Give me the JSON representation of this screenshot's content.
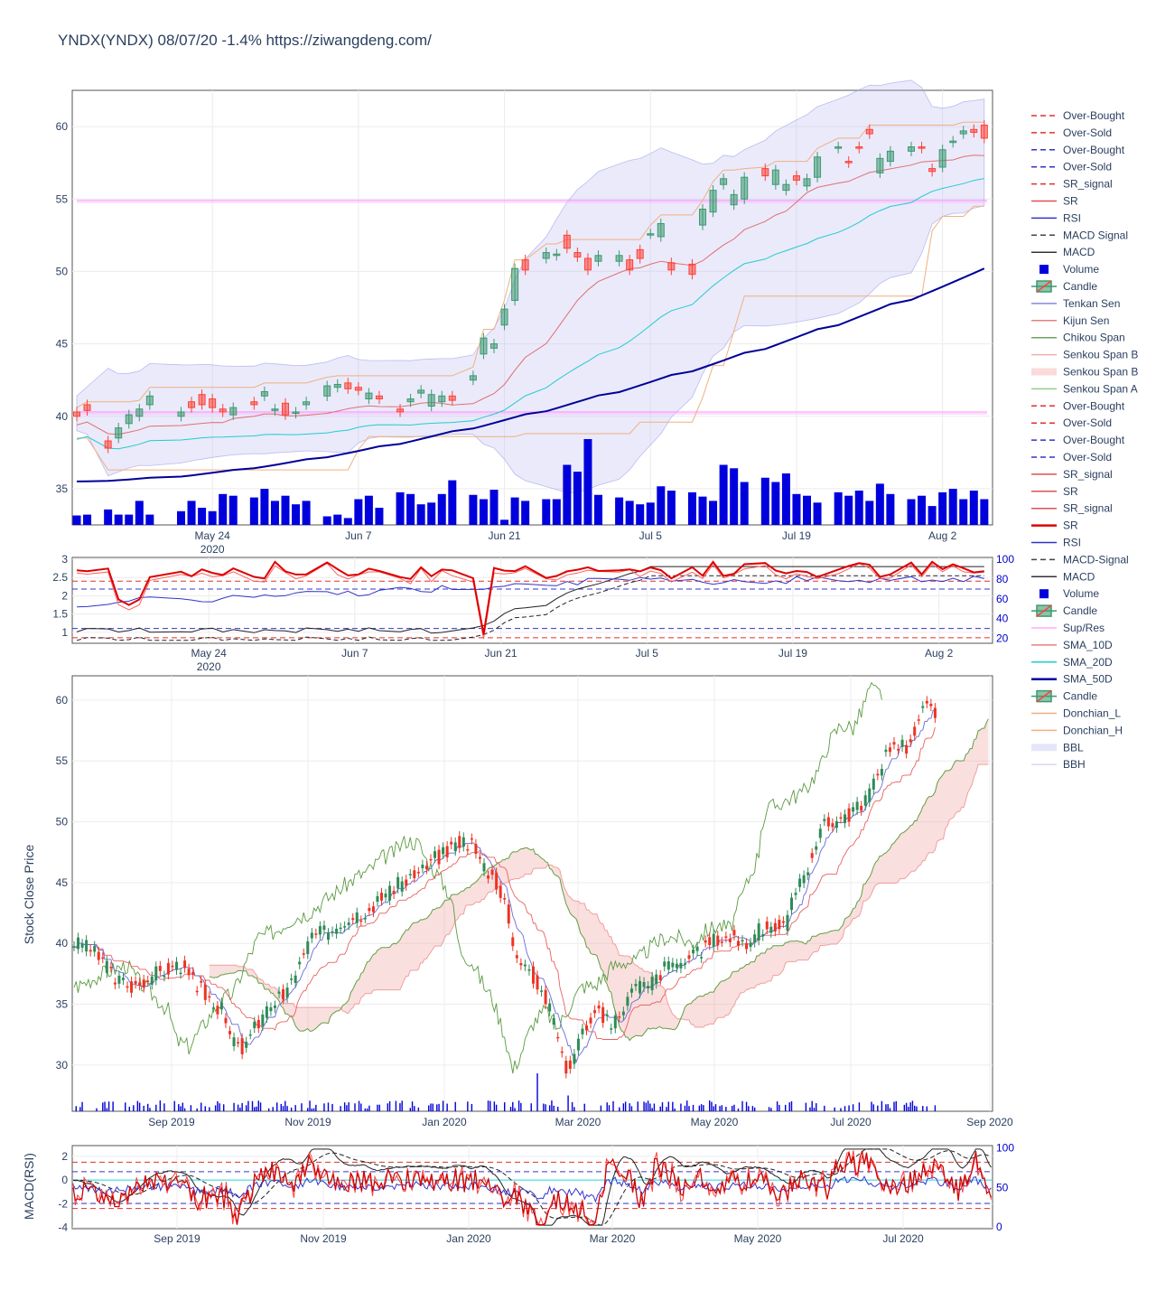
{
  "title": "YNDX(YNDX)  08/07/20  -1.4% https://ziwangdeng.com/",
  "colors": {
    "up": "#3d9970",
    "down": "#ff4136",
    "volume": "#0000dd",
    "sma10": "#e07070",
    "sma20": "#22cccc",
    "sma50": "#000099",
    "bb_fill": "rgba(180,180,240,0.28)",
    "kumo_fill": "rgba(240,150,150,0.30)",
    "chikou": "#5a9a40",
    "tenkan": "#6a6ad8",
    "kijun": "#e86060",
    "rsi": "#3333cc",
    "sr": "#dd0000",
    "macd": "#222222"
  },
  "y_axis_title_main": "Stock Close Price",
  "y_axis_title_bottom": "MACD(RSI)",
  "legend": [
    {
      "label": "Over-Bought",
      "icon": "dash-red-icon"
    },
    {
      "label": "Over-Sold",
      "icon": "dash-red-icon"
    },
    {
      "label": "Over-Bought",
      "icon": "dash-blue-icon"
    },
    {
      "label": "Over-Sold",
      "icon": "dash-blue-icon"
    },
    {
      "label": "SR_signal",
      "icon": "dash-red-icon"
    },
    {
      "label": "SR",
      "icon": "line-red-icon"
    },
    {
      "label": "RSI",
      "icon": "line-blue-icon"
    },
    {
      "label": "MACD Signal",
      "icon": "dash-black-icon"
    },
    {
      "label": "MACD",
      "icon": "line-black-icon"
    },
    {
      "label": "Volume",
      "icon": "square-blue-icon"
    },
    {
      "label": "Candle",
      "icon": "candle-icon"
    },
    {
      "label": "Tenkan Sen",
      "icon": "line-purple-icon"
    },
    {
      "label": "Kijun Sen",
      "icon": "line-salmon-icon"
    },
    {
      "label": "Chikou Span",
      "icon": "line-green-icon"
    },
    {
      "label": "Senkou Span B",
      "icon": "line-pink-icon"
    },
    {
      "label": "Senkou Span B",
      "icon": "fill-pink-icon"
    },
    {
      "label": "Senkou Span A",
      "icon": "line-lightgreen-icon"
    },
    {
      "label": "Over-Bought",
      "icon": "dash-red-icon"
    },
    {
      "label": "Over-Sold",
      "icon": "dash-red-icon"
    },
    {
      "label": "Over-Bought",
      "icon": "dash-blue-icon"
    },
    {
      "label": "Over-Sold",
      "icon": "dash-blue-icon"
    },
    {
      "label": "SR_signal",
      "icon": "line-red-icon"
    },
    {
      "label": "SR",
      "icon": "line-red-icon"
    },
    {
      "label": "SR_signal",
      "icon": "line-red-icon"
    },
    {
      "label": "SR",
      "icon": "thick-red-icon"
    },
    {
      "label": "RSI",
      "icon": "line-blue-icon"
    },
    {
      "label": "MACD-Signal",
      "icon": "dash-black-icon"
    },
    {
      "label": "MACD",
      "icon": "line-black-icon"
    },
    {
      "label": "Volume",
      "icon": "square-blue-icon"
    },
    {
      "label": "Candle",
      "icon": "candle-icon"
    },
    {
      "label": "Sup/Res",
      "icon": "line-magenta-icon"
    },
    {
      "label": "SMA_10D",
      "icon": "line-salmon-icon"
    },
    {
      "label": "SMA_20D",
      "icon": "line-cyan-icon"
    },
    {
      "label": "SMA_50D",
      "icon": "thick-navy-icon"
    },
    {
      "label": "Candle",
      "icon": "candle-icon"
    },
    {
      "label": "Donchian_L",
      "icon": "line-orange-icon"
    },
    {
      "label": "Donchian_H",
      "icon": "line-orange-icon"
    },
    {
      "label": "BBL",
      "icon": "fill-lavender-icon"
    },
    {
      "label": "BBH",
      "icon": "line-lavender-icon"
    }
  ],
  "chart_data": [
    {
      "id": "short_term_price",
      "type": "candlestick",
      "x_ticks": [
        {
          "label": "May 24",
          "sub": "2020"
        },
        {
          "label": "Jun 7",
          "sub": ""
        },
        {
          "label": "Jun 21",
          "sub": ""
        },
        {
          "label": "Jul 5",
          "sub": ""
        },
        {
          "label": "Jul 19",
          "sub": ""
        },
        {
          "label": "Aug 2",
          "sub": ""
        }
      ],
      "x_tick_days": [
        13,
        27,
        41,
        55,
        69,
        83
      ],
      "ylim": [
        32.5,
        62.5
      ],
      "y_ticks": [
        35,
        40,
        45,
        50,
        55,
        60
      ],
      "support_resistance": [
        40.3,
        54.9
      ],
      "days": [
        0,
        1,
        3,
        4,
        5,
        6,
        7,
        10,
        11,
        12,
        13,
        14,
        15,
        17,
        18,
        19,
        20,
        21,
        22,
        24,
        25,
        26,
        27,
        28,
        29,
        31,
        32,
        33,
        34,
        35,
        36,
        38,
        39,
        40,
        41,
        42,
        43,
        45,
        46,
        47,
        48,
        49,
        50,
        52,
        53,
        54,
        55,
        56,
        57,
        59,
        60,
        61,
        62,
        63,
        64,
        66,
        67,
        68,
        69,
        70,
        71,
        73,
        74,
        75,
        76,
        77,
        78,
        80,
        81,
        82,
        83,
        84,
        85,
        86,
        87
      ],
      "open": [
        40.3,
        40.8,
        38.3,
        38.5,
        39.5,
        40.0,
        40.8,
        40.0,
        41.0,
        41.5,
        41.2,
        40.5,
        40.1,
        41.0,
        41.4,
        40.4,
        40.9,
        40.2,
        40.8,
        41.4,
        42.0,
        42.3,
        42.0,
        41.2,
        41.4,
        40.5,
        41.0,
        41.6,
        40.7,
        41.0,
        41.4,
        42.5,
        44.3,
        44.7,
        46.3,
        48.0,
        50.8,
        50.9,
        51.1,
        52.5,
        51.3,
        50.9,
        50.7,
        50.7,
        50.8,
        51.5,
        52.6,
        52.4,
        50.6,
        50.5,
        53.2,
        54.1,
        56.0,
        54.6,
        55.0,
        57.1,
        56.0,
        55.6,
        56.6,
        55.9,
        56.5,
        58.5,
        57.6,
        58.6,
        59.8,
        56.8,
        57.6,
        58.3,
        58.6,
        57.1,
        57.2,
        58.9,
        59.5,
        59.8,
        60.1
      ],
      "close": [
        40.0,
        40.4,
        37.8,
        39.2,
        40.1,
        40.5,
        41.4,
        40.3,
        40.6,
        40.8,
        40.6,
        40.3,
        40.6,
        40.8,
        41.7,
        40.5,
        40.1,
        40.3,
        41.0,
        42.1,
        42.2,
        41.9,
        41.8,
        41.6,
        41.2,
        40.3,
        41.2,
        41.8,
        41.5,
        41.4,
        41.1,
        42.8,
        45.4,
        45.0,
        47.4,
        50.2,
        50.1,
        51.3,
        51.2,
        51.6,
        51.0,
        50.1,
        51.1,
        51.1,
        50.1,
        50.9,
        52.6,
        53.3,
        50.1,
        49.8,
        54.3,
        55.6,
        56.4,
        55.3,
        56.5,
        56.6,
        57.0,
        56.0,
        56.3,
        56.4,
        57.9,
        58.6,
        57.5,
        58.5,
        59.5,
        57.8,
        58.3,
        58.6,
        58.5,
        56.9,
        58.4,
        59.0,
        59.7,
        59.6,
        59.2
      ],
      "volume_scale": [
        20,
        100
      ],
      "volume": [
        11,
        12,
        18,
        12,
        12,
        28,
        12,
        16,
        28,
        20,
        16,
        36,
        34,
        32,
        42,
        28,
        34,
        24,
        28,
        10,
        12,
        8,
        30,
        34,
        20,
        38,
        36,
        24,
        26,
        36,
        52,
        35,
        30,
        41,
        6,
        32,
        28,
        30,
        30,
        70,
        62,
        100,
        35,
        32,
        28,
        24,
        26,
        45,
        40,
        38,
        33,
        28,
        70,
        66,
        50,
        55,
        50,
        60,
        36,
        34,
        26,
        38,
        34,
        40,
        28,
        48,
        36,
        30,
        34,
        22,
        38,
        42,
        30,
        40,
        30
      ]
    },
    {
      "id": "short_term_indicators",
      "type": "line",
      "ylim_left": [
        0.7,
        3.05
      ],
      "y_ticks_left": [
        1,
        1.5,
        2,
        2.5,
        3
      ],
      "ylim_right": [
        15,
        102
      ],
      "y_ticks_right": [
        20,
        40,
        60,
        80,
        100
      ],
      "x_ticks": [
        {
          "label": "May 24",
          "sub": "2020"
        },
        {
          "label": "Jun 7",
          "sub": ""
        },
        {
          "label": "Jun 21",
          "sub": ""
        },
        {
          "label": "Jul 5",
          "sub": ""
        },
        {
          "label": "Jul 19",
          "sub": ""
        },
        {
          "label": "Aug 2",
          "sub": ""
        }
      ],
      "levels_left": {
        "over_bought": 2.4,
        "over_sold": 0.85
      },
      "levels_right": {
        "over_bought": 70,
        "over_sold": 30
      }
    },
    {
      "id": "long_term_price",
      "type": "candlestick",
      "x_ticks": [
        "Sep 2019",
        "Nov 2019",
        "Jan 2020",
        "Mar 2020",
        "May 2020",
        "Jul 2020",
        "Sep 2020"
      ],
      "ylim": [
        26.2,
        62.0
      ],
      "y_ticks": [
        30,
        35,
        40,
        45,
        50,
        55,
        60
      ],
      "anchors": [
        [
          0,
          40.0
        ],
        [
          8,
          39.5
        ],
        [
          14,
          38.5
        ],
        [
          20,
          37.0
        ],
        [
          28,
          36.5
        ],
        [
          36,
          37.2
        ],
        [
          44,
          37.8
        ],
        [
          52,
          38.2
        ],
        [
          58,
          36.8
        ],
        [
          66,
          35.5
        ],
        [
          72,
          34.5
        ],
        [
          76,
          32.0
        ],
        [
          82,
          31.5
        ],
        [
          90,
          33.5
        ],
        [
          96,
          35.0
        ],
        [
          104,
          36.0
        ],
        [
          110,
          38.5
        ],
        [
          116,
          40.5
        ],
        [
          124,
          41.0
        ],
        [
          132,
          42.0
        ],
        [
          140,
          42.5
        ],
        [
          148,
          43.5
        ],
        [
          156,
          44.5
        ],
        [
          164,
          45.5
        ],
        [
          170,
          46.0
        ],
        [
          176,
          47.0
        ],
        [
          182,
          47.5
        ],
        [
          188,
          48.5
        ],
        [
          194,
          48.2
        ],
        [
          198,
          46.8
        ],
        [
          204,
          45.5
        ],
        [
          210,
          43.8
        ],
        [
          214,
          39.5
        ],
        [
          220,
          38.5
        ],
        [
          226,
          36.5
        ],
        [
          230,
          35.5
        ],
        [
          236,
          32.5
        ],
        [
          240,
          29.5
        ],
        [
          244,
          31.0
        ],
        [
          250,
          33.5
        ],
        [
          256,
          34.5
        ],
        [
          262,
          33.0
        ],
        [
          268,
          35.0
        ],
        [
          274,
          36.5
        ],
        [
          280,
          36.5
        ],
        [
          288,
          38.0
        ],
        [
          294,
          38.5
        ],
        [
          300,
          38.5
        ],
        [
          306,
          39.5
        ],
        [
          314,
          40.5
        ],
        [
          320,
          40.5
        ],
        [
          328,
          40.0
        ],
        [
          334,
          41.0
        ],
        [
          340,
          41.5
        ],
        [
          346,
          41.2
        ],
        [
          352,
          44.0
        ],
        [
          358,
          46.5
        ],
        [
          364,
          49.5
        ],
        [
          370,
          50.0
        ],
        [
          376,
          50.5
        ],
        [
          382,
          51.0
        ],
        [
          390,
          53.0
        ],
        [
          394,
          55.0
        ],
        [
          400,
          56.5
        ],
        [
          406,
          56.2
        ],
        [
          410,
          57.5
        ],
        [
          414,
          59.5
        ],
        [
          420,
          59.0
        ]
      ],
      "vol_spikes": [
        [
          7,
          90
        ],
        [
          75,
          180
        ],
        [
          113,
          170
        ],
        [
          226,
          150
        ],
        [
          241,
          70
        ],
        [
          258,
          110
        ]
      ]
    },
    {
      "id": "long_term_indicators",
      "type": "line",
      "ylim_left": [
        -4.1,
        2.9
      ],
      "y_ticks_left": [
        -4,
        -2,
        0,
        2
      ],
      "ylim_right": [
        -2,
        103
      ],
      "y_ticks_right": [
        0,
        50,
        100
      ],
      "x_ticks": [
        "Sep 2019",
        "Nov 2019",
        "Jan 2020",
        "Mar 2020",
        "May 2020",
        "Jul 2020"
      ],
      "levels_left": {
        "over_bought": 1.5,
        "over_sold": -2.4
      },
      "levels_right": {
        "over_bought": 70,
        "over_sold": 30
      }
    }
  ]
}
